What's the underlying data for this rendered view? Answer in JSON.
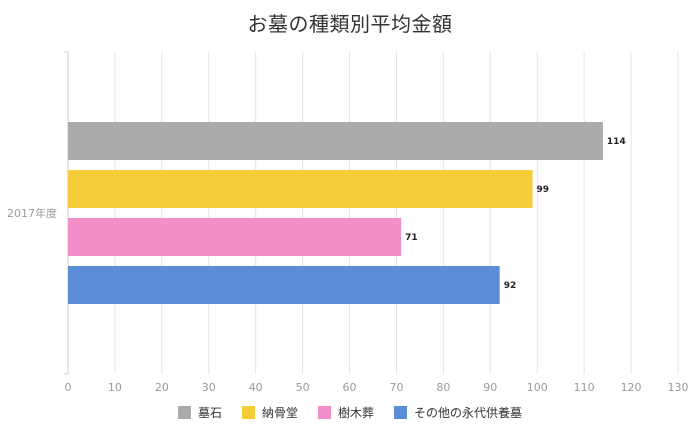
{
  "chart_data": {
    "type": "bar",
    "orientation": "horizontal",
    "title": "お墓の種類別平均金額",
    "categories": [
      "2017年度"
    ],
    "series": [
      {
        "name": "墓石",
        "values": [
          114
        ],
        "color": "#ababab"
      },
      {
        "name": "納骨堂",
        "values": [
          99
        ],
        "color": "#f5cd38"
      },
      {
        "name": "樹木葬",
        "values": [
          71
        ],
        "color": "#f38fc8"
      },
      {
        "name": "その他の永代供養墓",
        "values": [
          92
        ],
        "color": "#5b8dd6"
      }
    ],
    "xlim": [
      0,
      130
    ],
    "xticks": [
      0,
      10,
      20,
      30,
      40,
      50,
      60,
      70,
      80,
      90,
      100,
      110,
      120,
      130
    ],
    "grid": true,
    "legend_position": "bottom"
  }
}
